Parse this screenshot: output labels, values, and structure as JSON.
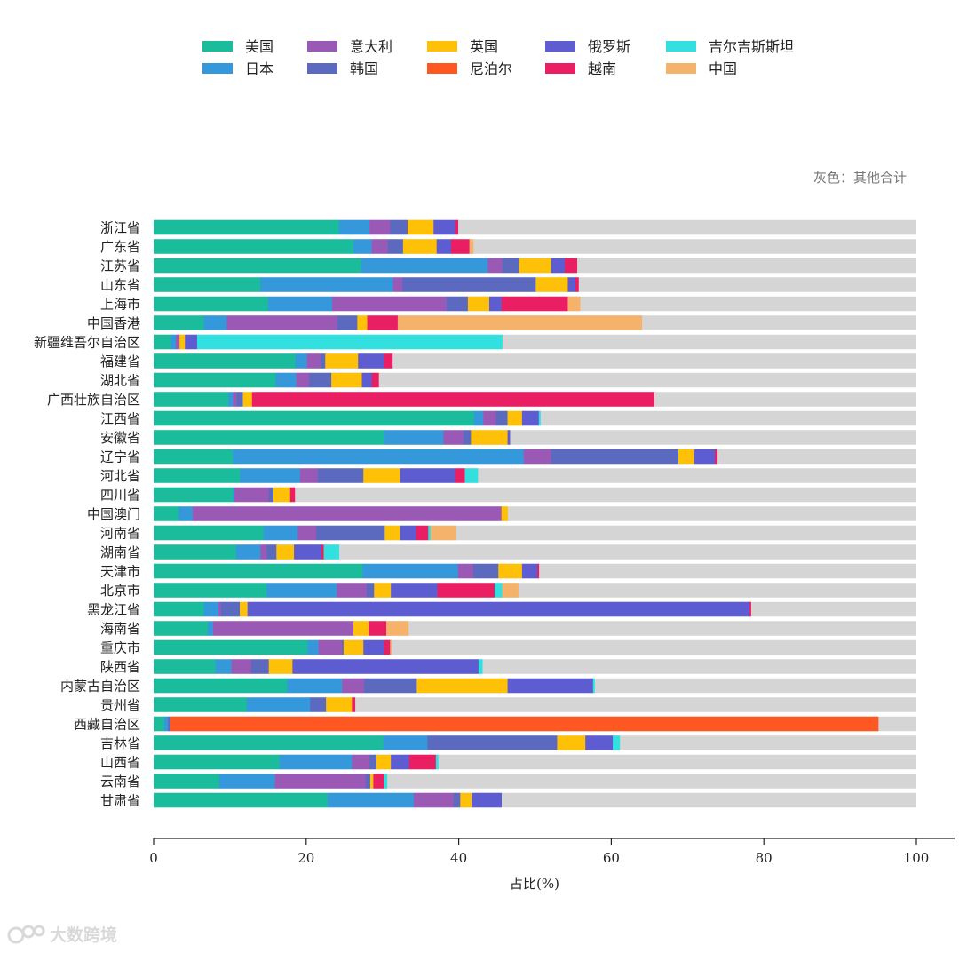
{
  "chart_data": {
    "type": "bar",
    "orientation": "horizontal",
    "stacked": true,
    "xlabel": "占比(%)",
    "xlim": [
      0,
      100
    ],
    "xticks": [
      0,
      20,
      40,
      60,
      80,
      100
    ],
    "note": "灰色：其他合计",
    "legend_position": "top",
    "series": [
      {
        "name": "美国",
        "color": "#1abc9c"
      },
      {
        "name": "日本",
        "color": "#3498db"
      },
      {
        "name": "意大利",
        "color": "#9b59b6"
      },
      {
        "name": "韩国",
        "color": "#5b6abf"
      },
      {
        "name": "英国",
        "color": "#ffc107"
      },
      {
        "name": "尼泊尔",
        "color": "#ff5722"
      },
      {
        "name": "俄罗斯",
        "color": "#5d5dd1"
      },
      {
        "name": "越南",
        "color": "#e91e63"
      },
      {
        "name": "吉尔吉斯斯坦",
        "color": "#33e0e0"
      },
      {
        "name": "中国",
        "color": "#f4b26b"
      }
    ],
    "other": {
      "name": "其他",
      "color": "#d5d5d5"
    },
    "categories": [
      "浙江省",
      "广东省",
      "江苏省",
      "山东省",
      "上海市",
      "中国香港",
      "新疆维吾尔自治区",
      "福建省",
      "湖北省",
      "广西壮族自治区",
      "江西省",
      "安徽省",
      "辽宁省",
      "河北省",
      "四川省",
      "中国澳门",
      "河南省",
      "湖南省",
      "天津市",
      "北京市",
      "黑龙江省",
      "海南省",
      "重庆市",
      "陕西省",
      "内蒙古自治区",
      "贵州省",
      "西藏自治区",
      "吉林省",
      "山西省",
      "云南省",
      "甘肃省"
    ],
    "values": [
      [
        24.3,
        4.0,
        2.7,
        2.3,
        3.4,
        0,
        2.8,
        0.4,
        0,
        0
      ],
      [
        26.2,
        2.4,
        2.1,
        2.0,
        4.4,
        0,
        1.9,
        2.4,
        0,
        0.5
      ],
      [
        27.2,
        16.6,
        1.9,
        2.2,
        4.2,
        0,
        1.8,
        1.6,
        0,
        0
      ],
      [
        14.0,
        17.4,
        1.2,
        17.5,
        4.2,
        0,
        1.0,
        0.4,
        0,
        0
      ],
      [
        15.0,
        8.4,
        15.0,
        2.8,
        2.8,
        0,
        1.6,
        8.7,
        0,
        1.6
      ],
      [
        6.6,
        3.0,
        14.5,
        2.6,
        1.3,
        0,
        0,
        4.0,
        0,
        32.0
      ],
      [
        2.3,
        0.6,
        0.5,
        0,
        0.7,
        0,
        1.6,
        0,
        40.0,
        0
      ],
      [
        18.6,
        1.5,
        1.8,
        0.6,
        4.3,
        0,
        3.4,
        1.1,
        0,
        0
      ],
      [
        16.0,
        2.7,
        1.7,
        2.9,
        4.0,
        0,
        1.3,
        0.9,
        0,
        0
      ],
      [
        9.8,
        0.6,
        0.5,
        0.8,
        1.2,
        0,
        0,
        52.7,
        0,
        0
      ],
      [
        42.0,
        1.2,
        1.7,
        1.5,
        1.9,
        0,
        2.2,
        0,
        0.2,
        0
      ],
      [
        30.2,
        7.8,
        2.6,
        1.0,
        4.8,
        0,
        0.3,
        0,
        0,
        0
      ],
      [
        10.4,
        38.1,
        3.6,
        16.7,
        2.1,
        0,
        2.7,
        0.3,
        0,
        0
      ],
      [
        11.3,
        7.9,
        2.3,
        6.0,
        4.8,
        0,
        7.2,
        1.3,
        1.7,
        0
      ],
      [
        10.4,
        0.2,
        4.5,
        0.6,
        2.2,
        0,
        0,
        0.6,
        0,
        0
      ],
      [
        3.3,
        1.8,
        40.5,
        0,
        0.8,
        0,
        0,
        0,
        0,
        0
      ],
      [
        14.4,
        4.5,
        2.4,
        9.0,
        2.0,
        0,
        2.1,
        1.6,
        0.3,
        3.3
      ],
      [
        10.8,
        3.2,
        0.8,
        1.3,
        2.3,
        0,
        3.6,
        0.3,
        2.0,
        0
      ],
      [
        27.4,
        12.5,
        2.0,
        3.3,
        3.1,
        0,
        2.0,
        0.2,
        0,
        0
      ],
      [
        14.8,
        9.2,
        3.9,
        1.0,
        2.2,
        0,
        6.1,
        7.5,
        1.0,
        2.1
      ],
      [
        6.6,
        1.9,
        0.3,
        2.5,
        1.0,
        0,
        65.8,
        0.2,
        0,
        0
      ],
      [
        7.1,
        0.7,
        18.4,
        0,
        2.0,
        0,
        0,
        2.3,
        0,
        2.9
      ],
      [
        20.2,
        1.4,
        3.1,
        0.2,
        2.6,
        0,
        2.7,
        0.8,
        0,
        0.2
      ],
      [
        8.1,
        2.1,
        2.6,
        2.3,
        3.1,
        0,
        24.4,
        0,
        0.5,
        0
      ],
      [
        17.5,
        7.2,
        2.9,
        6.9,
        11.9,
        0,
        11.2,
        0,
        0.2,
        0
      ],
      [
        12.2,
        8.3,
        0,
        2.1,
        3.4,
        0,
        0,
        0.4,
        0,
        0
      ],
      [
        1.4,
        0.5,
        0,
        0.3,
        0,
        92.8,
        0,
        0,
        0,
        0
      ],
      [
        30.1,
        5.8,
        0,
        17.0,
        3.7,
        0,
        3.6,
        0,
        0.9,
        0
      ],
      [
        16.5,
        9.5,
        2.3,
        0.9,
        1.9,
        0,
        2.4,
        3.5,
        0.3,
        0
      ],
      [
        8.6,
        7.3,
        11.9,
        0.6,
        0.4,
        0,
        0,
        1.4,
        0.4,
        0
      ],
      [
        22.8,
        11.3,
        5.2,
        0.9,
        1.5,
        0,
        3.9,
        0,
        0,
        0
      ]
    ]
  },
  "watermark": {
    "text": "大数跨境"
  }
}
